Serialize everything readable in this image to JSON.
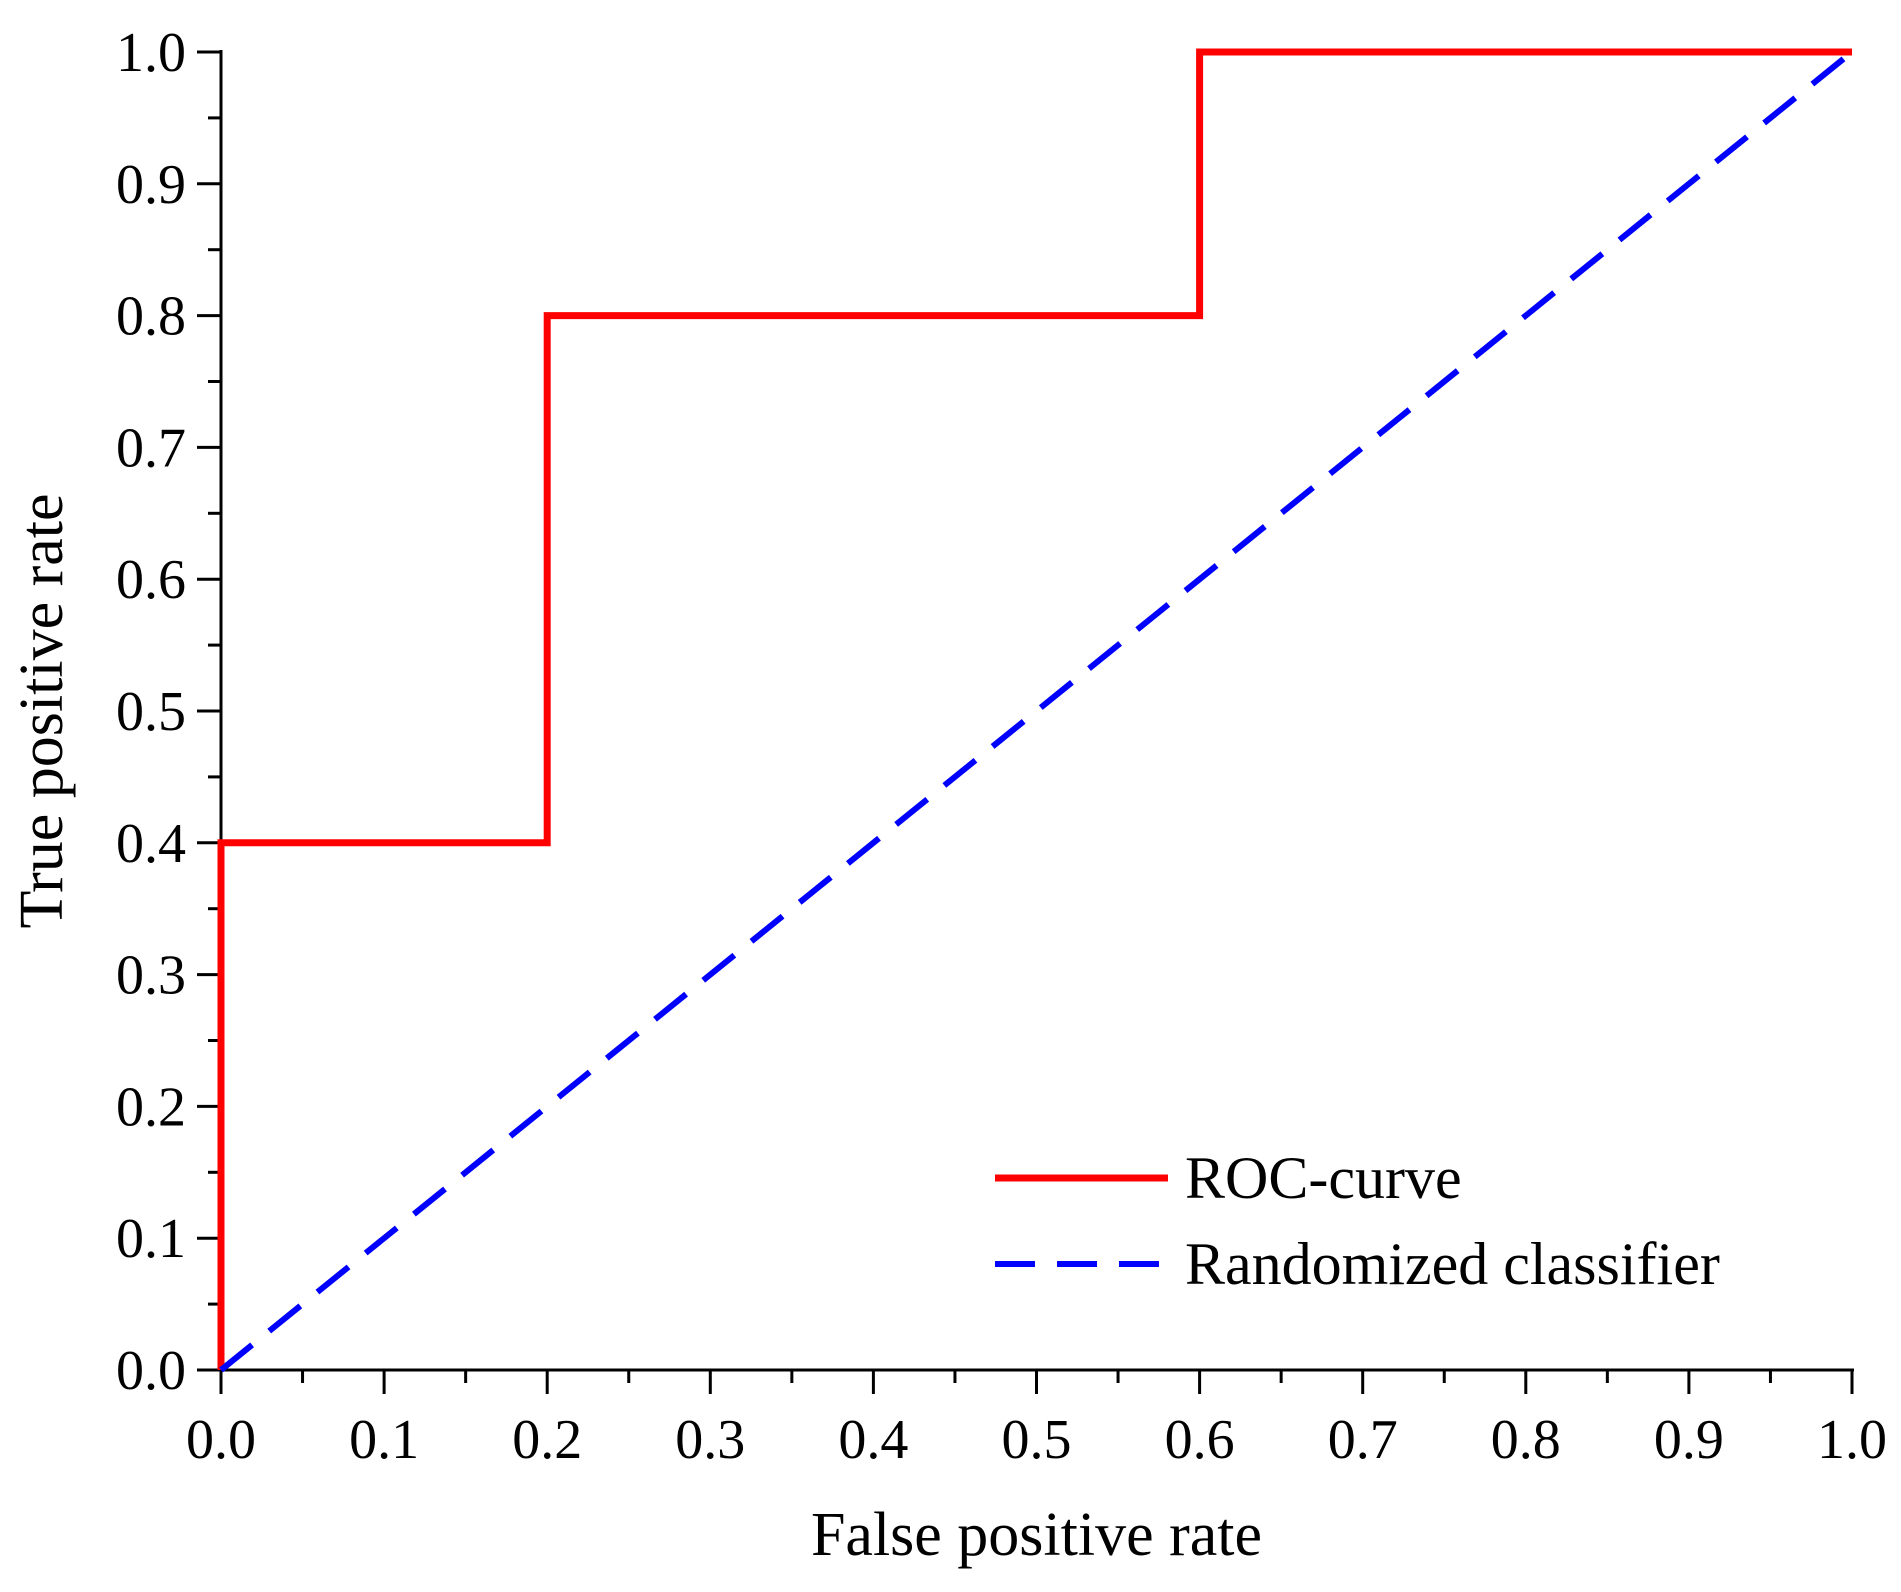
{
  "chart_data": {
    "type": "line",
    "title": "",
    "xlabel": "False positive rate",
    "ylabel": "True positive rate",
    "xlim": [
      0.0,
      1.0
    ],
    "ylim": [
      0.0,
      1.0
    ],
    "x_ticks": [
      "0.0",
      "0.1",
      "0.2",
      "0.3",
      "0.4",
      "0.5",
      "0.6",
      "0.7",
      "0.8",
      "0.9",
      "1.0"
    ],
    "y_ticks": [
      "0.0",
      "0.1",
      "0.2",
      "0.3",
      "0.4",
      "0.5",
      "0.6",
      "0.7",
      "0.8",
      "0.9",
      "1.0"
    ],
    "grid": false,
    "legend_position": "bottom-right",
    "series": [
      {
        "name": "ROC-curve",
        "style": "solid",
        "color": "#ff0000",
        "x": [
          0.0,
          0.0,
          0.0,
          0.2,
          0.2,
          0.6,
          0.6,
          1.0
        ],
        "y": [
          0.0,
          0.2,
          0.4,
          0.4,
          0.8,
          0.8,
          1.0,
          1.0
        ]
      },
      {
        "name": "Randomized classifier",
        "style": "dashed",
        "color": "#0000ff",
        "x": [
          0.0,
          1.0
        ],
        "y": [
          0.0,
          1.0
        ]
      }
    ]
  }
}
